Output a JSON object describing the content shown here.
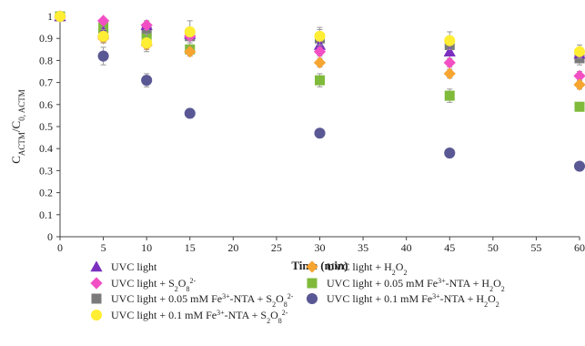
{
  "chart_data": {
    "type": "scatter",
    "xlabel": "Time (min)",
    "ylabel_main": "C",
    "ylabel_sub1": "ACTM",
    "ylabel_sep": "/C",
    "ylabel_sub2": "0, ACTM",
    "xlim": [
      0,
      60
    ],
    "ylim": [
      0,
      1
    ],
    "x_ticks": [
      0,
      5,
      10,
      15,
      20,
      25,
      30,
      35,
      40,
      45,
      50,
      55,
      60
    ],
    "y_ticks": [
      0,
      0.1,
      0.2,
      0.3,
      0.4,
      0.5,
      0.6,
      0.7,
      0.8,
      0.9,
      1
    ],
    "grid": false,
    "legend_placement": "bottom",
    "series": [
      {
        "name_parts": [
          [
            "UVC light",
            "n"
          ]
        ],
        "marker": "triangle",
        "color": "#7b2fbf",
        "points": [
          [
            0,
            1.0
          ],
          [
            5,
            0.93
          ],
          [
            10,
            0.96
          ],
          [
            15,
            0.92
          ],
          [
            30,
            0.87
          ],
          [
            45,
            0.84
          ],
          [
            60,
            0.83
          ]
        ],
        "err": [
          0,
          0.02,
          0.02,
          0.02,
          0.02,
          0.03,
          0.02
        ]
      },
      {
        "name_parts": [
          [
            "UVC light + H",
            "n"
          ],
          [
            "2",
            "sub"
          ],
          [
            "O",
            "n"
          ],
          [
            "2",
            "sub"
          ]
        ],
        "marker": "diamond",
        "color": "#f6a531",
        "points": [
          [
            0,
            1.0
          ],
          [
            5,
            0.9
          ],
          [
            10,
            0.87
          ],
          [
            15,
            0.84
          ],
          [
            30,
            0.79
          ],
          [
            45,
            0.74
          ],
          [
            60,
            0.69
          ]
        ],
        "err": [
          0,
          0.02,
          0.02,
          0.02,
          0.02,
          0.02,
          0.02
        ]
      },
      {
        "name_parts": [
          [
            "UVC light + S",
            "n"
          ],
          [
            "2",
            "sub"
          ],
          [
            "O",
            "n"
          ],
          [
            "8",
            "sub"
          ],
          [
            "2-",
            "sup"
          ]
        ],
        "marker": "diamond",
        "color": "#f24fc4",
        "points": [
          [
            0,
            1.0
          ],
          [
            5,
            0.98
          ],
          [
            10,
            0.96
          ],
          [
            15,
            0.91
          ],
          [
            30,
            0.84
          ],
          [
            45,
            0.79
          ],
          [
            60,
            0.73
          ]
        ],
        "err": [
          0,
          0.01,
          0.02,
          0.02,
          0.02,
          0.02,
          0.02
        ]
      },
      {
        "name_parts": [
          [
            "UVC light + 0.05 mM Fe",
            "n"
          ],
          [
            "3+",
            "sup"
          ],
          [
            "-NTA + H",
            "n"
          ],
          [
            "2",
            "sub"
          ],
          [
            "O",
            "n"
          ],
          [
            "2",
            "sub"
          ]
        ],
        "marker": "square",
        "color": "#7fba3a",
        "points": [
          [
            0,
            1.0
          ],
          [
            5,
            0.95
          ],
          [
            10,
            0.9
          ],
          [
            15,
            0.85
          ],
          [
            30,
            0.71
          ],
          [
            45,
            0.64
          ],
          [
            60,
            0.59
          ]
        ],
        "err": [
          0,
          0.02,
          0.02,
          0.02,
          0.03,
          0.03,
          0.02
        ]
      },
      {
        "name_parts": [
          [
            "UVC light + 0.05 mM Fe",
            "n"
          ],
          [
            "3+",
            "sup"
          ],
          [
            "-NTA + S",
            "n"
          ],
          [
            "2",
            "sub"
          ],
          [
            "O",
            "n"
          ],
          [
            "8",
            "sub"
          ],
          [
            "2-",
            "sup"
          ]
        ],
        "marker": "square",
        "color": "#7a7a7a",
        "points": [
          [
            0,
            1.0
          ],
          [
            5,
            0.92
          ],
          [
            10,
            0.93
          ],
          [
            15,
            0.91
          ],
          [
            30,
            0.9
          ],
          [
            45,
            0.87
          ],
          [
            60,
            0.81
          ]
        ],
        "err": [
          0,
          0.03,
          0.04,
          0.04,
          0.04,
          0.04,
          0.03
        ]
      },
      {
        "name_parts": [
          [
            "UVC light + 0.1 mM Fe",
            "n"
          ],
          [
            "3+",
            "sup"
          ],
          [
            "-NTA + H",
            "n"
          ],
          [
            "2",
            "sub"
          ],
          [
            "O",
            "n"
          ],
          [
            "2",
            "sub"
          ]
        ],
        "marker": "circle",
        "color": "#5a5894",
        "points": [
          [
            0,
            1.0
          ],
          [
            5,
            0.82
          ],
          [
            10,
            0.71
          ],
          [
            15,
            0.56
          ],
          [
            30,
            0.47
          ],
          [
            45,
            0.38
          ],
          [
            60,
            0.32
          ]
        ],
        "err": [
          0,
          0.04,
          0.03,
          0.02,
          0.02,
          0.01,
          0.01
        ]
      },
      {
        "name_parts": [
          [
            "UVC light + 0.1 mM Fe",
            "n"
          ],
          [
            "3+",
            "sup"
          ],
          [
            "-NTA + S",
            "n"
          ],
          [
            "2",
            "sub"
          ],
          [
            "O",
            "n"
          ],
          [
            "8",
            "sub"
          ],
          [
            "2-",
            "sup"
          ]
        ],
        "marker": "circle",
        "color": "#ffee33",
        "points": [
          [
            0,
            1.0
          ],
          [
            5,
            0.91
          ],
          [
            10,
            0.88
          ],
          [
            15,
            0.93
          ],
          [
            30,
            0.91
          ],
          [
            45,
            0.89
          ],
          [
            60,
            0.84
          ]
        ],
        "err": [
          0,
          0.03,
          0.04,
          0.05,
          0.04,
          0.04,
          0.03
        ]
      }
    ],
    "legend_order": [
      0,
      1,
      2,
      3,
      4,
      5,
      6
    ]
  }
}
